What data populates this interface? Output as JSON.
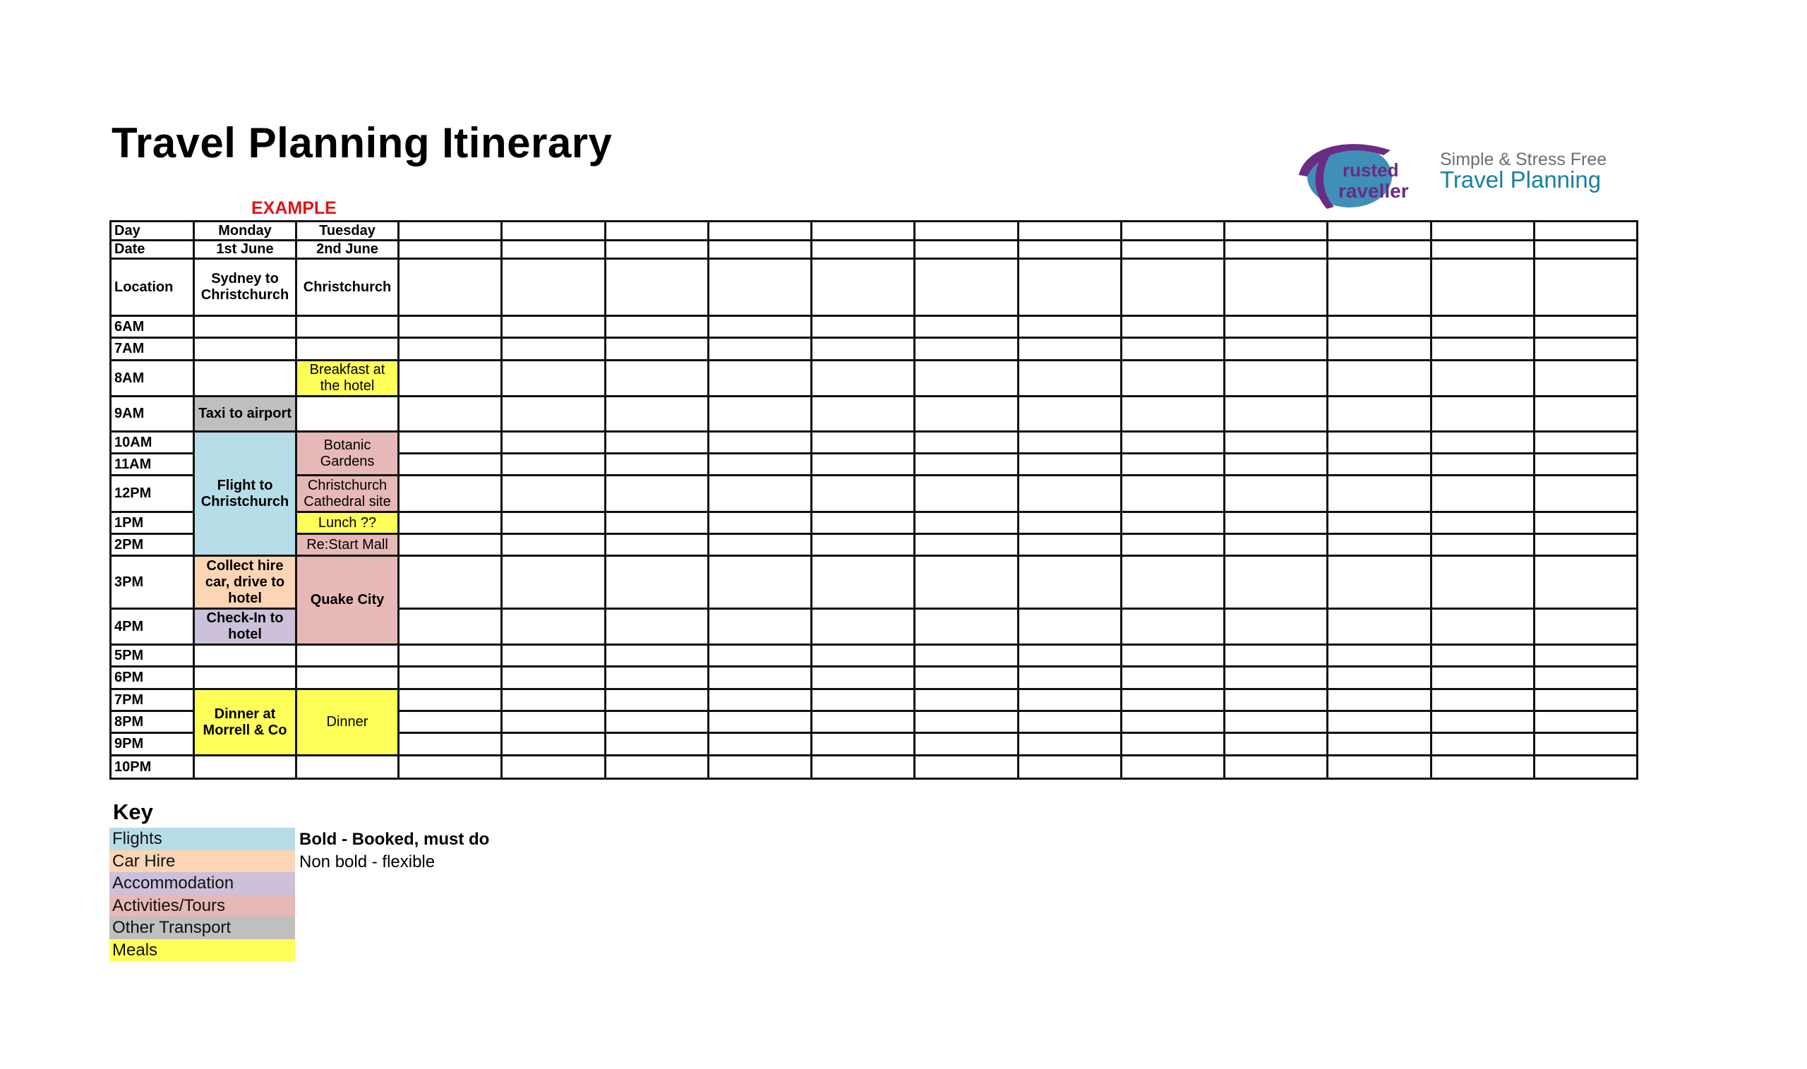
{
  "title": "Travel Planning Itinerary",
  "example_label": "EXAMPLE",
  "logo": {
    "text": "The Trusted Traveller",
    "colors": {
      "purple": "#6a2c82",
      "blue": "#3f8fb8"
    }
  },
  "tagline": {
    "line1": "Simple & Stress Free",
    "line2": "Travel Planning"
  },
  "row_labels": {
    "day": "Day",
    "date": "Date",
    "location": "Location"
  },
  "days": [
    {
      "day": "Monday",
      "date": "1st June",
      "location": "Sydney to Christchurch"
    },
    {
      "day": "Tuesday",
      "date": "2nd June",
      "location": "Christchurch"
    },
    {
      "day": "",
      "date": "",
      "location": ""
    },
    {
      "day": "",
      "date": "",
      "location": ""
    },
    {
      "day": "",
      "date": "",
      "location": ""
    },
    {
      "day": "",
      "date": "",
      "location": ""
    },
    {
      "day": "",
      "date": "",
      "location": ""
    },
    {
      "day": "",
      "date": "",
      "location": ""
    },
    {
      "day": "",
      "date": "",
      "location": ""
    },
    {
      "day": "",
      "date": "",
      "location": ""
    },
    {
      "day": "",
      "date": "",
      "location": ""
    },
    {
      "day": "",
      "date": "",
      "location": ""
    },
    {
      "day": "",
      "date": "",
      "location": ""
    },
    {
      "day": "",
      "date": "",
      "location": ""
    }
  ],
  "times": [
    "6AM",
    "7AM",
    "8AM",
    "9AM",
    "10AM",
    "11AM",
    "12PM",
    "1PM",
    "2PM",
    "3PM",
    "4PM",
    "5PM",
    "6PM",
    "7PM",
    "8PM",
    "9PM",
    "10PM"
  ],
  "events": [
    {
      "day": 0,
      "start": "9AM",
      "span": 1,
      "text": "Taxi to airport",
      "category": "other_transport",
      "bold": true
    },
    {
      "day": 0,
      "start": "10AM",
      "span": 5,
      "text": "Flight to Christchurch",
      "category": "flights",
      "bold": true
    },
    {
      "day": 0,
      "start": "3PM",
      "span": 1,
      "text": "Collect hire car, drive to hotel",
      "category": "car_hire",
      "bold": true
    },
    {
      "day": 0,
      "start": "4PM",
      "span": 1,
      "text": "Check-In to hotel",
      "category": "accommodation",
      "bold": true
    },
    {
      "day": 0,
      "start": "7PM",
      "span": 3,
      "text": "Dinner at Morrell & Co",
      "category": "meals",
      "bold": true
    },
    {
      "day": 1,
      "start": "8AM",
      "span": 1,
      "text": "Breakfast at the hotel",
      "category": "meals",
      "bold": false
    },
    {
      "day": 1,
      "start": "10AM",
      "span": 2,
      "text": "Botanic Gardens",
      "category": "activities",
      "bold": false
    },
    {
      "day": 1,
      "start": "12PM",
      "span": 1,
      "text": "Christchurch Cathedral site",
      "category": "activities",
      "bold": false
    },
    {
      "day": 1,
      "start": "1PM",
      "span": 1,
      "text": "Lunch ??",
      "category": "meals",
      "bold": false
    },
    {
      "day": 1,
      "start": "2PM",
      "span": 1,
      "text": "Re:Start Mall",
      "category": "activities",
      "bold": false
    },
    {
      "day": 1,
      "start": "3PM",
      "span": 2,
      "text": "Quake City",
      "category": "activities",
      "bold": true
    },
    {
      "day": 1,
      "start": "7PM",
      "span": 3,
      "text": "Dinner",
      "category": "meals",
      "bold": false
    }
  ],
  "key": {
    "title": "Key",
    "items": [
      {
        "id": "flights",
        "label": "Flights",
        "color": "#b7dde8"
      },
      {
        "id": "car_hire",
        "label": "Car Hire",
        "color": "#fcd5b4"
      },
      {
        "id": "accommodation",
        "label": "Accommodation",
        "color": "#ccc0da"
      },
      {
        "id": "activities",
        "label": "Activities/Tours",
        "color": "#e6b8b7"
      },
      {
        "id": "other_transport",
        "label": "Other Transport",
        "color": "#bfbfbf"
      },
      {
        "id": "meals",
        "label": "Meals",
        "color": "#ffff5a"
      }
    ],
    "note_bold": "Bold - Booked, must do",
    "note_regular": "Non bold - flexible"
  }
}
